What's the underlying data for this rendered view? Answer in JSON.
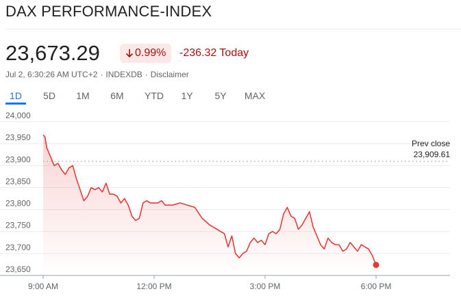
{
  "header": {
    "title": "DAX PERFORMANCE-INDEX",
    "price": "23,673.29",
    "change_percent": "0.99%",
    "change_today": "-236.32 Today",
    "timestamp": "Jul 2, 6:30:26 AM UTC+2",
    "exchange": "INDEXDB",
    "disclaimer": "Disclaimer",
    "separator": "·"
  },
  "colors": {
    "line": "#e53935",
    "negative_text": "#a50e0e",
    "negative_bg": "#fce8e6",
    "accent": "#1a73e8"
  },
  "tabs": [
    {
      "label": "1D",
      "active": true
    },
    {
      "label": "5D",
      "active": false
    },
    {
      "label": "1M",
      "active": false
    },
    {
      "label": "6M",
      "active": false
    },
    {
      "label": "YTD",
      "active": false
    },
    {
      "label": "1Y",
      "active": false
    },
    {
      "label": "5Y",
      "active": false
    },
    {
      "label": "MAX",
      "active": false
    }
  ],
  "chart_data": {
    "type": "line",
    "title": "",
    "xlabel": "",
    "ylabel": "",
    "grid": true,
    "ylim": [
      23650,
      24000
    ],
    "y_ticks": [
      "24,000",
      "23,950",
      "23,900",
      "23,850",
      "23,800",
      "23,750",
      "23,700",
      "23,650"
    ],
    "y_tick_values": [
      24000,
      23950,
      23900,
      23850,
      23800,
      23750,
      23700,
      23650
    ],
    "x_ticks": [
      "9:00 AM",
      "12:00 PM",
      "3:00 PM",
      "6:00 PM"
    ],
    "x_tick_hours": [
      9,
      12,
      15,
      18
    ],
    "x_range_hours": [
      9,
      20
    ],
    "prev_close": {
      "label": "Prev close",
      "value_label": "23,909.61",
      "value": 23909.61
    },
    "series": [
      {
        "x_hours": [
          9.0,
          9.05,
          9.1,
          9.2,
          9.3,
          9.4,
          9.5,
          9.6,
          9.7,
          9.8,
          9.9,
          10.0,
          10.1,
          10.2,
          10.3,
          10.4,
          10.5,
          10.6,
          10.7,
          10.8,
          10.9,
          11.0,
          11.1,
          11.2,
          11.3,
          11.4,
          11.5,
          11.6,
          11.7,
          11.8,
          11.9,
          12.0,
          12.1,
          12.2,
          12.3,
          12.5,
          12.7,
          12.9,
          13.1,
          13.3,
          13.5,
          13.7,
          13.9,
          14.0,
          14.1,
          14.2,
          14.3,
          14.4,
          14.5,
          14.6,
          14.7,
          14.8,
          14.9,
          15.0,
          15.1,
          15.2,
          15.3,
          15.4,
          15.5,
          15.6,
          15.7,
          15.8,
          15.9,
          16.0,
          16.1,
          16.2,
          16.3,
          16.4,
          16.5,
          16.6,
          16.7,
          16.8,
          16.9,
          17.0,
          17.1,
          17.2,
          17.3,
          17.4,
          17.5,
          17.6,
          17.7,
          17.8,
          17.9,
          18.0
        ],
        "values": [
          23970,
          23965,
          23940,
          23920,
          23900,
          23905,
          23890,
          23880,
          23895,
          23900,
          23870,
          23845,
          23820,
          23830,
          23850,
          23845,
          23850,
          23840,
          23860,
          23835,
          23835,
          23830,
          23815,
          23825,
          23810,
          23785,
          23775,
          23780,
          23815,
          23820,
          23815,
          23815,
          23815,
          23820,
          23810,
          23810,
          23815,
          23810,
          23805,
          23780,
          23765,
          23755,
          23745,
          23715,
          23740,
          23700,
          23690,
          23700,
          23705,
          23725,
          23735,
          23725,
          23730,
          23720,
          23745,
          23750,
          23745,
          23755,
          23790,
          23805,
          23785,
          23780,
          23755,
          23765,
          23780,
          23795,
          23760,
          23740,
          23720,
          23710,
          23735,
          23725,
          23720,
          23720,
          23705,
          23710,
          23725,
          23715,
          23705,
          23720,
          23715,
          23710,
          23695,
          23674
        ]
      }
    ]
  }
}
